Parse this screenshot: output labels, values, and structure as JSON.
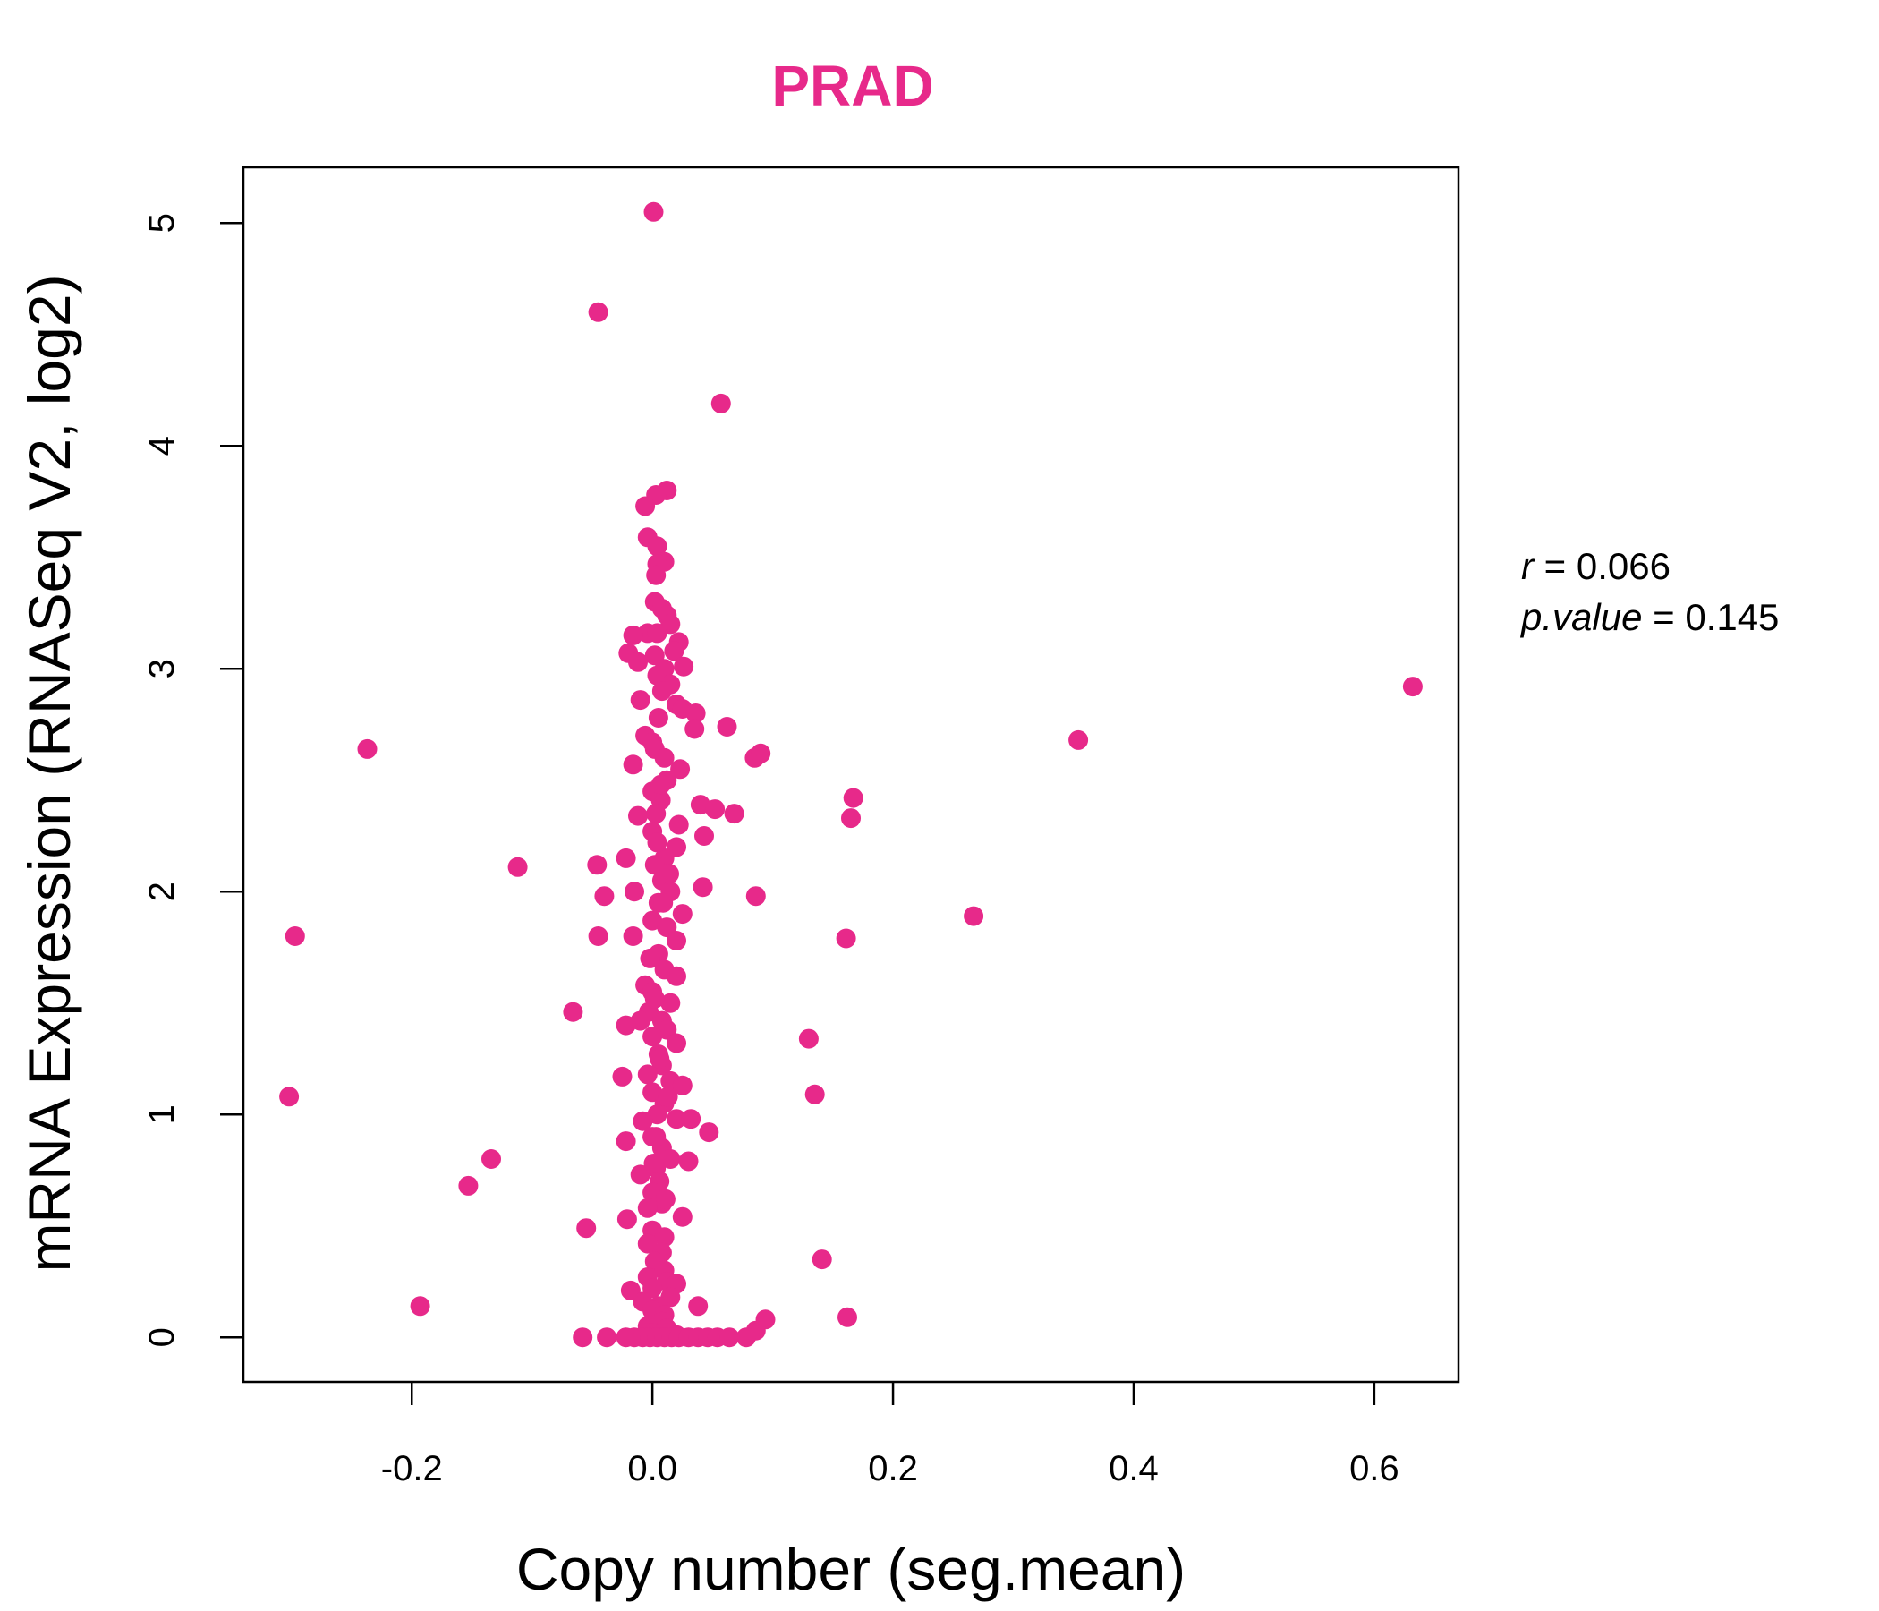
{
  "chart_data": {
    "type": "scatter",
    "title": "PRAD",
    "xlabel": "Copy number (seg.mean)",
    "ylabel": "mRNA Expression (RNASeq V2, log2)",
    "xlim": [
      -0.34,
      0.67
    ],
    "ylim": [
      -0.2,
      5.25
    ],
    "x_ticks": [
      -0.2,
      0.0,
      0.2,
      0.4,
      0.6
    ],
    "x_tick_labels": [
      "-0.2",
      "0.0",
      "0.2",
      "0.4",
      "0.6"
    ],
    "y_ticks": [
      0,
      1,
      2,
      3,
      4,
      5
    ],
    "y_tick_labels": [
      "0",
      "1",
      "2",
      "3",
      "4",
      "5"
    ],
    "grid": false,
    "point_color": "#E7298A",
    "title_color": "#E7298A",
    "stats": {
      "r_key": "r",
      "r_value": "0.066",
      "p_key": "p.value",
      "p_value": "0.145"
    },
    "points": [
      [
        0.001,
        5.05
      ],
      [
        -0.045,
        4.6
      ],
      [
        0.057,
        4.19
      ],
      [
        0.012,
        3.8
      ],
      [
        0.003,
        3.78
      ],
      [
        -0.006,
        3.73
      ],
      [
        -0.004,
        3.59
      ],
      [
        0.004,
        3.55
      ],
      [
        0.01,
        3.48
      ],
      [
        0.004,
        3.47
      ],
      [
        0.003,
        3.42
      ],
      [
        0.002,
        3.3
      ],
      [
        0.008,
        3.27
      ],
      [
        0.012,
        3.24
      ],
      [
        0.015,
        3.2
      ],
      [
        -0.004,
        3.16
      ],
      [
        0.004,
        3.16
      ],
      [
        -0.016,
        3.15
      ],
      [
        0.022,
        3.12
      ],
      [
        0.018,
        3.08
      ],
      [
        -0.02,
        3.07
      ],
      [
        0.002,
        3.06
      ],
      [
        -0.012,
        3.03
      ],
      [
        0.026,
        3.01
      ],
      [
        0.01,
        3.0
      ],
      [
        0.004,
        2.97
      ],
      [
        0.015,
        2.93
      ],
      [
        0.008,
        2.9
      ],
      [
        -0.01,
        2.86
      ],
      [
        0.02,
        2.84
      ],
      [
        0.025,
        2.82
      ],
      [
        0.036,
        2.8
      ],
      [
        0.005,
        2.78
      ],
      [
        0.035,
        2.73
      ],
      [
        0.062,
        2.74
      ],
      [
        -0.006,
        2.7
      ],
      [
        0.0,
        2.67
      ],
      [
        0.002,
        2.64
      ],
      [
        0.01,
        2.6
      ],
      [
        -0.016,
        2.57
      ],
      [
        0.023,
        2.55
      ],
      [
        0.085,
        2.6
      ],
      [
        0.09,
        2.62
      ],
      [
        -0.237,
        2.64
      ],
      [
        0.012,
        2.5
      ],
      [
        0.0,
        2.45
      ],
      [
        0.04,
        2.39
      ],
      [
        0.052,
        2.37
      ],
      [
        0.068,
        2.35
      ],
      [
        0.007,
        2.41
      ],
      [
        0.003,
        2.35
      ],
      [
        -0.012,
        2.34
      ],
      [
        0.022,
        2.3
      ],
      [
        0.0,
        2.27
      ],
      [
        0.043,
        2.25
      ],
      [
        0.02,
        2.2
      ],
      [
        0.01,
        2.15
      ],
      [
        0.002,
        2.12
      ],
      [
        -0.046,
        2.12
      ],
      [
        -0.112,
        2.11
      ],
      [
        -0.022,
        2.15
      ],
      [
        0.008,
        2.05
      ],
      [
        0.015,
        2.0
      ],
      [
        -0.04,
        1.98
      ],
      [
        -0.015,
        2.0
      ],
      [
        0.042,
        2.02
      ],
      [
        0.086,
        1.98
      ],
      [
        0.005,
        1.95
      ],
      [
        0.025,
        1.9
      ],
      [
        0.0,
        1.87
      ],
      [
        0.012,
        1.84
      ],
      [
        -0.016,
        1.8
      ],
      [
        -0.045,
        1.8
      ],
      [
        -0.297,
        1.8
      ],
      [
        0.02,
        1.78
      ],
      [
        0.161,
        1.79
      ],
      [
        0.267,
        1.89
      ],
      [
        0.165,
        2.33
      ],
      [
        0.167,
        2.42
      ],
      [
        0.354,
        2.68
      ],
      [
        0.632,
        2.92
      ],
      [
        0.005,
        1.72
      ],
      [
        0.01,
        1.65
      ],
      [
        0.02,
        1.62
      ],
      [
        -0.006,
        1.58
      ],
      [
        0.0,
        1.55
      ],
      [
        0.015,
        1.5
      ],
      [
        -0.003,
        1.46
      ],
      [
        0.008,
        1.42
      ],
      [
        -0.066,
        1.46
      ],
      [
        -0.01,
        1.42
      ],
      [
        0.012,
        1.38
      ],
      [
        -0.022,
        1.4
      ],
      [
        0.0,
        1.35
      ],
      [
        0.02,
        1.32
      ],
      [
        0.13,
        1.34
      ],
      [
        0.005,
        1.27
      ],
      [
        0.008,
        1.22
      ],
      [
        -0.004,
        1.18
      ],
      [
        -0.025,
        1.17
      ],
      [
        0.015,
        1.15
      ],
      [
        0.025,
        1.13
      ],
      [
        0.0,
        1.1
      ],
      [
        0.01,
        1.05
      ],
      [
        0.135,
        1.09
      ],
      [
        -0.302,
        1.08
      ],
      [
        0.004,
        1.0
      ],
      [
        0.02,
        0.98
      ],
      [
        0.032,
        0.98
      ],
      [
        -0.008,
        0.97
      ],
      [
        0.047,
        0.92
      ],
      [
        0.0,
        0.9
      ],
      [
        -0.022,
        0.88
      ],
      [
        0.008,
        0.85
      ],
      [
        0.015,
        0.8
      ],
      [
        0.03,
        0.79
      ],
      [
        -0.134,
        0.8
      ],
      [
        0.003,
        0.76
      ],
      [
        -0.01,
        0.73
      ],
      [
        0.006,
        0.7
      ],
      [
        -0.153,
        0.68
      ],
      [
        0.0,
        0.65
      ],
      [
        0.008,
        0.6
      ],
      [
        -0.004,
        0.58
      ],
      [
        0.025,
        0.54
      ],
      [
        -0.021,
        0.53
      ],
      [
        0.0,
        0.48
      ],
      [
        -0.055,
        0.49
      ],
      [
        0.01,
        0.45
      ],
      [
        -0.004,
        0.42
      ],
      [
        0.008,
        0.38
      ],
      [
        0.141,
        0.35
      ],
      [
        0.002,
        0.34
      ],
      [
        0.01,
        0.3
      ],
      [
        -0.004,
        0.27
      ],
      [
        0.012,
        0.25
      ],
      [
        0.02,
        0.24
      ],
      [
        0.0,
        0.22
      ],
      [
        -0.018,
        0.21
      ],
      [
        0.015,
        0.18
      ],
      [
        -0.008,
        0.16
      ],
      [
        0.005,
        0.14
      ],
      [
        0.038,
        0.14
      ],
      [
        -0.193,
        0.14
      ],
      [
        0.0,
        0.12
      ],
      [
        0.01,
        0.1
      ],
      [
        0.162,
        0.09
      ],
      [
        0.094,
        0.08
      ],
      [
        0.008,
        0.07
      ],
      [
        -0.004,
        0.05
      ],
      [
        0.012,
        0.04
      ],
      [
        0.086,
        0.03
      ],
      [
        0.0,
        0.02
      ],
      [
        0.02,
        0.01
      ],
      [
        0.078,
        0.0
      ],
      [
        -0.058,
        0.0
      ],
      [
        -0.038,
        0.0
      ],
      [
        -0.022,
        0.0
      ],
      [
        -0.015,
        0.0
      ],
      [
        -0.008,
        0.0
      ],
      [
        -0.002,
        0.0
      ],
      [
        0.004,
        0.0
      ],
      [
        0.01,
        0.0
      ],
      [
        0.016,
        0.0
      ],
      [
        0.022,
        0.0
      ],
      [
        0.03,
        0.0
      ],
      [
        0.038,
        0.0
      ],
      [
        0.046,
        0.0
      ],
      [
        0.054,
        0.0
      ],
      [
        0.064,
        0.0
      ],
      [
        0.003,
        0.9
      ],
      [
        0.006,
        1.25
      ],
      [
        -0.002,
        1.7
      ],
      [
        0.009,
        1.95
      ],
      [
        0.004,
        2.22
      ],
      [
        0.007,
        2.48
      ],
      [
        0.001,
        0.78
      ],
      [
        0.011,
        0.62
      ],
      [
        0.013,
        1.08
      ],
      [
        0.002,
        1.52
      ],
      [
        0.014,
        2.08
      ]
    ]
  }
}
